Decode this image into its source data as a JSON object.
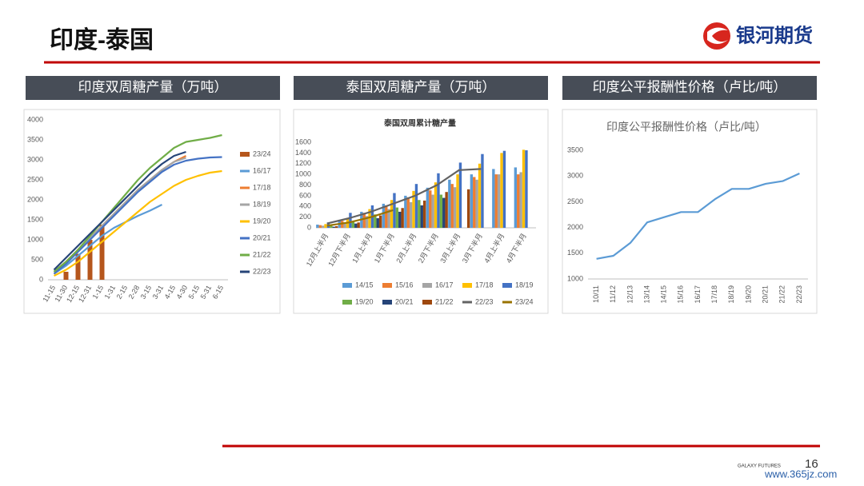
{
  "slide_title": "印度-泰国",
  "logo_text": "银河期货",
  "panels": [
    {
      "header": "印度双周糖产量（万吨）"
    },
    {
      "header": "泰国双周糖产量（万吨）"
    },
    {
      "header": "印度公平报酬性价格（卢比/吨）"
    }
  ],
  "footer": "GALAXY FUTURES",
  "page_number": "16",
  "watermark": "www.365jz.com",
  "chart_data": [
    {
      "type": "combo",
      "categories": [
        "11-15",
        "11-30",
        "12-15",
        "12-31",
        "1-15",
        "1-31",
        "2-15",
        "2-28",
        "3-15",
        "3-31",
        "4-15",
        "4-30",
        "5-15",
        "5-31",
        "6-15"
      ],
      "ylim": [
        0,
        4000
      ],
      "yticks": [
        0,
        500,
        1000,
        1500,
        2000,
        2500,
        3000,
        3500,
        4000
      ],
      "grid": false,
      "legend": "right",
      "series": [
        {
          "name": "23/24",
          "type": "bar",
          "color": "#b5561c",
          "values": [
            null,
            200,
            650,
            1000,
            1380,
            null,
            null,
            null,
            null,
            null,
            null,
            null,
            null,
            null,
            null
          ]
        },
        {
          "name": "16/17",
          "type": "line",
          "color": "#5b9bd5",
          "values": [
            150,
            350,
            600,
            850,
            1100,
            1300,
            1450,
            1600,
            1730,
            1880,
            null,
            null,
            null,
            null,
            null
          ]
        },
        {
          "name": "17/18",
          "type": "line",
          "color": "#ed7d31",
          "values": [
            200,
            450,
            750,
            1050,
            1350,
            1650,
            1950,
            2250,
            2500,
            2750,
            2950,
            3100,
            null,
            null,
            null
          ]
        },
        {
          "name": "18/19",
          "type": "line",
          "color": "#a5a5a5",
          "values": [
            200,
            450,
            750,
            1050,
            1350,
            1650,
            1950,
            2250,
            2500,
            2750,
            2950,
            3050,
            null,
            null,
            null
          ]
        },
        {
          "name": "19/20",
          "type": "line",
          "color": "#ffc000",
          "values": [
            100,
            250,
            450,
            700,
            950,
            1200,
            1450,
            1700,
            1950,
            2150,
            2350,
            2500,
            2600,
            2680,
            2720
          ]
        },
        {
          "name": "20/21",
          "type": "line",
          "color": "#4472c4",
          "values": [
            150,
            400,
            700,
            1000,
            1300,
            1600,
            1900,
            2200,
            2450,
            2700,
            2880,
            2980,
            3030,
            3060,
            3070
          ]
        },
        {
          "name": "21/22",
          "type": "line",
          "color": "#70ad47",
          "values": [
            200,
            450,
            750,
            1100,
            1450,
            1800,
            2150,
            2500,
            2800,
            3050,
            3300,
            3450,
            3500,
            3550,
            3620
          ]
        },
        {
          "name": "22/23",
          "type": "line",
          "color": "#264478",
          "values": [
            250,
            550,
            850,
            1150,
            1450,
            1750,
            2050,
            2350,
            2650,
            2900,
            3100,
            3200,
            null,
            null,
            null
          ]
        }
      ]
    },
    {
      "type": "combo",
      "title": "泰国双周累计糖产量",
      "categories": [
        "12月上半月",
        "12月下半月",
        "1月上半月",
        "1月下半月",
        "2月上半月",
        "2月下半月",
        "3月上半月",
        "3月下半月",
        "4月上半月",
        "4月下半月"
      ],
      "ylim": [
        0,
        1600
      ],
      "yticks": [
        0,
        200,
        400,
        600,
        800,
        1000,
        1200,
        1400,
        1600
      ],
      "grid": false,
      "legend": "bottom",
      "series": [
        {
          "name": "14/15",
          "type": "bar",
          "color": "#5b9bd5",
          "values": [
            60,
            150,
            300,
            450,
            600,
            750,
            900,
            1000,
            1100,
            1130
          ]
        },
        {
          "name": "15/16",
          "type": "bar",
          "color": "#ed7d31",
          "values": [
            50,
            130,
            280,
            420,
            570,
            700,
            820,
            950,
            1000,
            1000
          ]
        },
        {
          "name": "16/17",
          "type": "bar",
          "color": "#a5a5a5",
          "values": [
            40,
            100,
            220,
            350,
            480,
            620,
            760,
            900,
            1000,
            1040
          ]
        },
        {
          "name": "17/18",
          "type": "bar",
          "color": "#ffc000",
          "values": [
            70,
            180,
            350,
            520,
            690,
            850,
            1000,
            1200,
            1400,
            1460
          ]
        },
        {
          "name": "18/19",
          "type": "bar",
          "color": "#4472c4",
          "values": [
            100,
            280,
            420,
            650,
            820,
            1020,
            1220,
            1380,
            1440,
            1450
          ]
        },
        {
          "name": "19/20",
          "type": "bar",
          "color": "#70ad47",
          "values": [
            40,
            120,
            250,
            380,
            520,
            620,
            null,
            null,
            null,
            null
          ]
        },
        {
          "name": "20/21",
          "type": "bar",
          "color": "#264478",
          "values": [
            20,
            80,
            180,
            300,
            420,
            560,
            null,
            null,
            null,
            null
          ]
        },
        {
          "name": "21/22",
          "type": "bar",
          "color": "#9e480e",
          "values": [
            30,
            100,
            230,
            370,
            510,
            670,
            720,
            null,
            null,
            null
          ]
        },
        {
          "name": "22/23",
          "type": "line",
          "color": "#636363",
          "values": [
            80,
            180,
            300,
            450,
            600,
            800,
            1080,
            1100,
            null,
            null
          ]
        },
        {
          "name": "23/24",
          "type": "line",
          "color": "#997300",
          "values": [
            40,
            100,
            200,
            330,
            null,
            null,
            null,
            null,
            null,
            null
          ]
        }
      ]
    },
    {
      "type": "line",
      "title": "印度公平报酬性价格（卢比/吨）",
      "categories": [
        "10/11",
        "11/12",
        "12/13",
        "13/14",
        "14/15",
        "15/16",
        "16/17",
        "17/18",
        "18/19",
        "19/20",
        "20/21",
        "21/22",
        "22/23"
      ],
      "values": [
        1391,
        1450,
        1700,
        2100,
        2200,
        2300,
        2300,
        2550,
        2750,
        2750,
        2850,
        2900,
        3050
      ],
      "color": "#5b9bd5",
      "ylim": [
        1000,
        3500
      ],
      "yticks": [
        1000,
        1500,
        2000,
        2500,
        3000,
        3500
      ],
      "grid": false
    }
  ]
}
